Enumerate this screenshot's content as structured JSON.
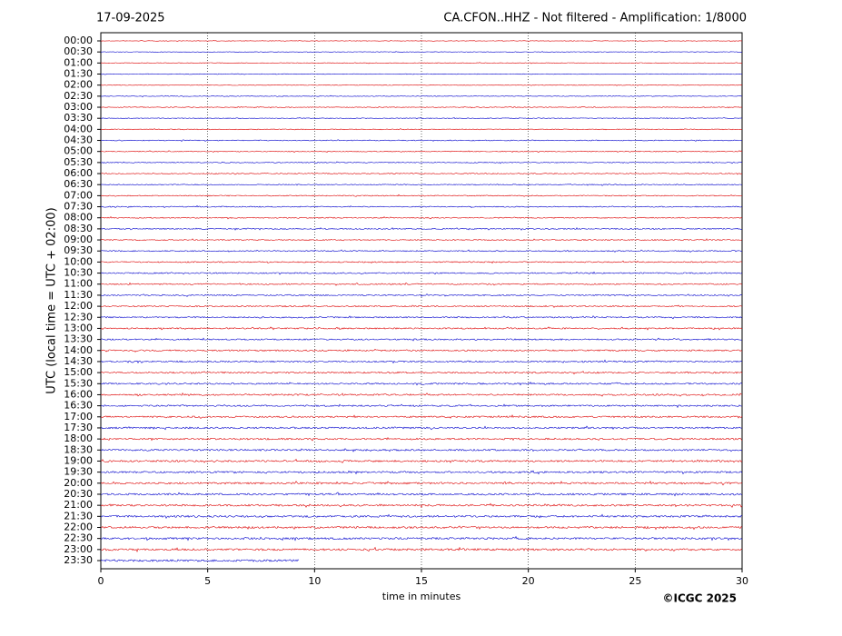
{
  "chart_data": {
    "type": "helicorder",
    "date": "17-09-2025",
    "title": "CA.CFON..HHZ - Not filtered - Amplification: 1/8000",
    "xlabel": "time in minutes",
    "ylabel": "UTC (local time = UTC + 02:00)",
    "copyright": "©ICGC 2025",
    "categories": [
      "00:00",
      "00:30",
      "01:00",
      "01:30",
      "02:00",
      "02:30",
      "03:00",
      "03:30",
      "04:00",
      "04:30",
      "05:00",
      "05:30",
      "06:00",
      "06:30",
      "07:00",
      "07:30",
      "08:00",
      "08:30",
      "09:00",
      "09:30",
      "10:00",
      "10:30",
      "11:00",
      "11:30",
      "12:00",
      "12:30",
      "13:00",
      "13:30",
      "14:00",
      "14:30",
      "15:00",
      "15:30",
      "16:00",
      "16:30",
      "17:00",
      "17:30",
      "18:00",
      "18:30",
      "19:00",
      "19:30",
      "20:00",
      "20:30",
      "21:00",
      "21:30",
      "22:00",
      "22:30",
      "23:00",
      "23:30"
    ],
    "colors": [
      "#dd0000",
      "#0000cc"
    ],
    "xlim": [
      0,
      30
    ],
    "xticks": [
      0,
      5,
      10,
      15,
      20,
      25,
      30
    ],
    "last_trace_end": 9.3,
    "grid": true
  }
}
